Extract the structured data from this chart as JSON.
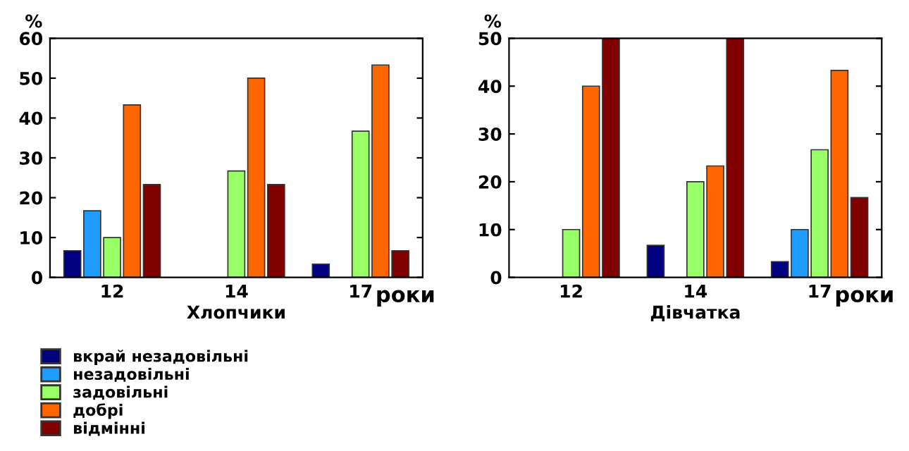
{
  "chart_data": [
    {
      "type": "bar",
      "xlabel": "Хлопчики",
      "ylabel": "%",
      "categories": [
        "12",
        "14",
        "17"
      ],
      "annotations": [
        "роки"
      ],
      "ylim": [
        0,
        60
      ],
      "yticks": [
        0,
        10,
        20,
        30,
        40,
        50,
        60
      ],
      "grid": false,
      "legend": "bottom",
      "series": [
        {
          "name": "вкрай незадовільні",
          "color": "#000080",
          "values": [
            6.7,
            null,
            3.3
          ]
        },
        {
          "name": "незадовільні",
          "color": "#1e9cff",
          "values": [
            16.7,
            null,
            null
          ]
        },
        {
          "name": "задовільні",
          "color": "#99ff66",
          "values": [
            10,
            26.7,
            36.7
          ]
        },
        {
          "name": "добрі",
          "color": "#ff6600",
          "values": [
            43.3,
            50,
            53.3
          ]
        },
        {
          "name": "відмінні",
          "color": "#800000",
          "values": [
            23.3,
            23.3,
            6.7
          ]
        }
      ]
    },
    {
      "type": "bar",
      "xlabel": "Дівчатка",
      "ylabel": "%",
      "categories": [
        "12",
        "14",
        "17"
      ],
      "annotations": [
        "роки"
      ],
      "ylim": [
        0,
        50
      ],
      "yticks": [
        0,
        10,
        20,
        30,
        40,
        50
      ],
      "grid": false,
      "series": [
        {
          "color": "#000080",
          "values": [
            null,
            6.7,
            3.3
          ]
        },
        {
          "color": "#1e9cff",
          "values": [
            null,
            null,
            10
          ]
        },
        {
          "color": "#99ff66",
          "values": [
            10,
            20,
            26.7
          ]
        },
        {
          "color": "#ff6600",
          "values": [
            40,
            23.3,
            43.3
          ]
        },
        {
          "color": "#800000",
          "values": [
            50,
            50,
            16.7
          ]
        }
      ]
    }
  ]
}
